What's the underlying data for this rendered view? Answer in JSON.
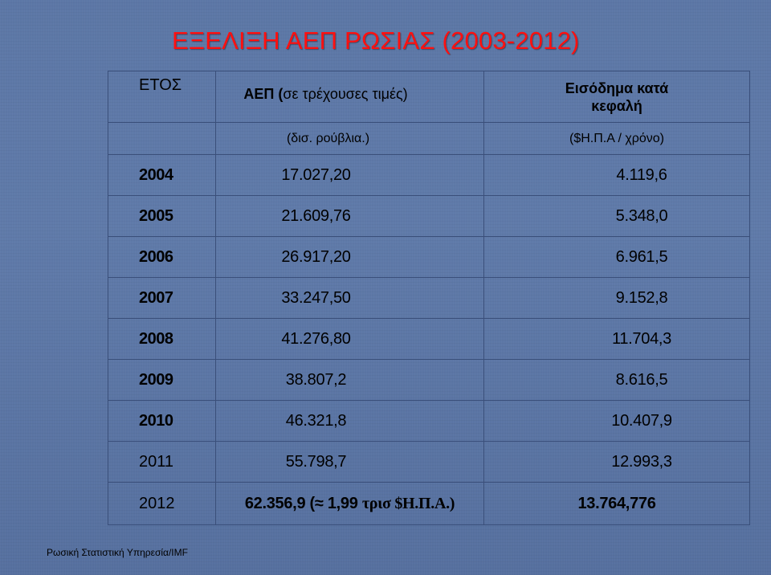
{
  "title": "ΕΞΕΛΙΞΗ ΑΕΠ ΡΩΣΙΑΣ (2003-2012)",
  "table": {
    "header": {
      "year": "ΕΤΟΣ",
      "gdp_main": "ΑΕΠ (",
      "gdp_paren": "σε τρέχουσες τιμές)",
      "income_line1": "Εισόδημα κατά",
      "income_line2": "κεφαλή",
      "gdp_unit": "(δισ. ρούβλια.)",
      "income_unit": "($Η.Π.Α / χρόνο)"
    },
    "rows": [
      {
        "year": "2004",
        "gdp": "17.027,20",
        "income": "4.119,6"
      },
      {
        "year": "2005",
        "gdp": "21.609,76",
        "income": "5.348,0"
      },
      {
        "year": "2006",
        "gdp": "26.917,20",
        "income": "6.961,5"
      },
      {
        "year": "2007",
        "gdp": "33.247,50",
        "income": "9.152,8"
      },
      {
        "year": "2008",
        "gdp": "41.276,80",
        "income": "11.704,3"
      },
      {
        "year": "2009",
        "gdp": "38.807,2",
        "income": "8.616,5"
      },
      {
        "year": "2010",
        "gdp": "46.321,8",
        "income": "10.407,9"
      },
      {
        "year": "2011",
        "gdp": "55.798,7",
        "income": "12.993,3"
      }
    ],
    "last_row": {
      "year": "2012",
      "gdp_value": "62.356,9 (",
      "gdp_approx": "≈",
      "gdp_value2": " 1,99 ",
      "gdp_word": "τρισ",
      "gdp_currency": " $Η.Π.Α.)",
      "income": "13.764,776"
    }
  },
  "footer": "Ρωσική Στατιστική Υπηρεσία/IMF",
  "colors": {
    "background": "#5f7aa9",
    "title": "#ff1010",
    "grid_lines": "#3a4f7a",
    "text": "#000000"
  }
}
